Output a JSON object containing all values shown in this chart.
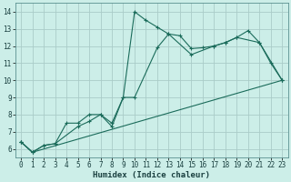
{
  "xlabel": "Humidex (Indice chaleur)",
  "xlim": [
    -0.5,
    23.5
  ],
  "ylim": [
    5.5,
    14.5
  ],
  "yticks": [
    6,
    7,
    8,
    9,
    10,
    11,
    12,
    13,
    14
  ],
  "xticks": [
    0,
    1,
    2,
    3,
    4,
    5,
    6,
    7,
    8,
    9,
    10,
    11,
    12,
    13,
    14,
    15,
    16,
    17,
    18,
    19,
    20,
    21,
    22,
    23
  ],
  "bg_color": "#cceee8",
  "grid_color": "#aaccc8",
  "line_color": "#1a6b5a",
  "line1_x": [
    0,
    1,
    2,
    3,
    4,
    5,
    6,
    7,
    8,
    9,
    10,
    11,
    12,
    13,
    14,
    15,
    16,
    17,
    18,
    19,
    20,
    21,
    22,
    23
  ],
  "line1_y": [
    6.4,
    5.8,
    6.2,
    6.3,
    7.5,
    7.5,
    8.0,
    8.0,
    7.3,
    9.0,
    14.0,
    13.5,
    13.1,
    12.7,
    12.6,
    11.85,
    11.9,
    12.0,
    12.2,
    12.5,
    12.9,
    12.2,
    11.0,
    10.0
  ],
  "line2_x": [
    0,
    1,
    2,
    3,
    5,
    6,
    7,
    8,
    9,
    10,
    12,
    13,
    15,
    17,
    18,
    19,
    21,
    23
  ],
  "line2_y": [
    6.4,
    5.8,
    6.2,
    6.3,
    7.3,
    7.6,
    8.0,
    7.5,
    9.0,
    9.0,
    11.9,
    12.7,
    11.5,
    12.0,
    12.2,
    12.5,
    12.2,
    10.0
  ],
  "line3_x": [
    0,
    1,
    23
  ],
  "line3_y": [
    6.4,
    5.8,
    10.0
  ]
}
